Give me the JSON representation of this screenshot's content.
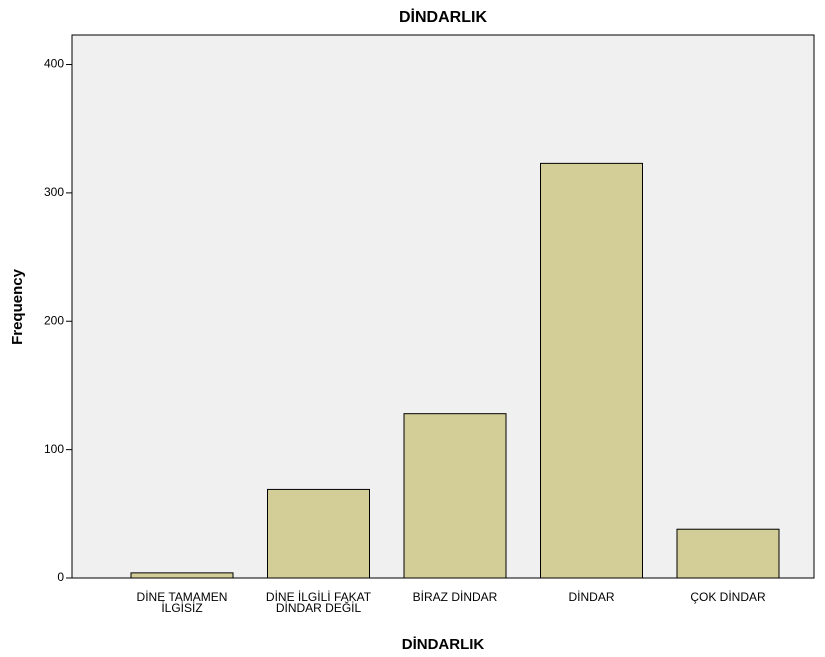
{
  "chart_data": {
    "type": "bar",
    "title": "DİNDARLIK",
    "x_label": "DİNDARLIK",
    "y_label": "Frequency",
    "categories": [
      "DİNE TAMAMEN İLGİSİZ",
      "DİNE İLGİLİ FAKAT DİNDAR DEĞİL",
      "BİRAZ DİNDAR",
      "DİNDAR",
      "ÇOK DİNDAR"
    ],
    "values": [
      4,
      69,
      128,
      323,
      38
    ],
    "color": "#d3ce97",
    "ylim": [
      0,
      423
    ],
    "yticks": [
      0,
      100,
      200,
      300,
      400
    ],
    "grid": false
  }
}
